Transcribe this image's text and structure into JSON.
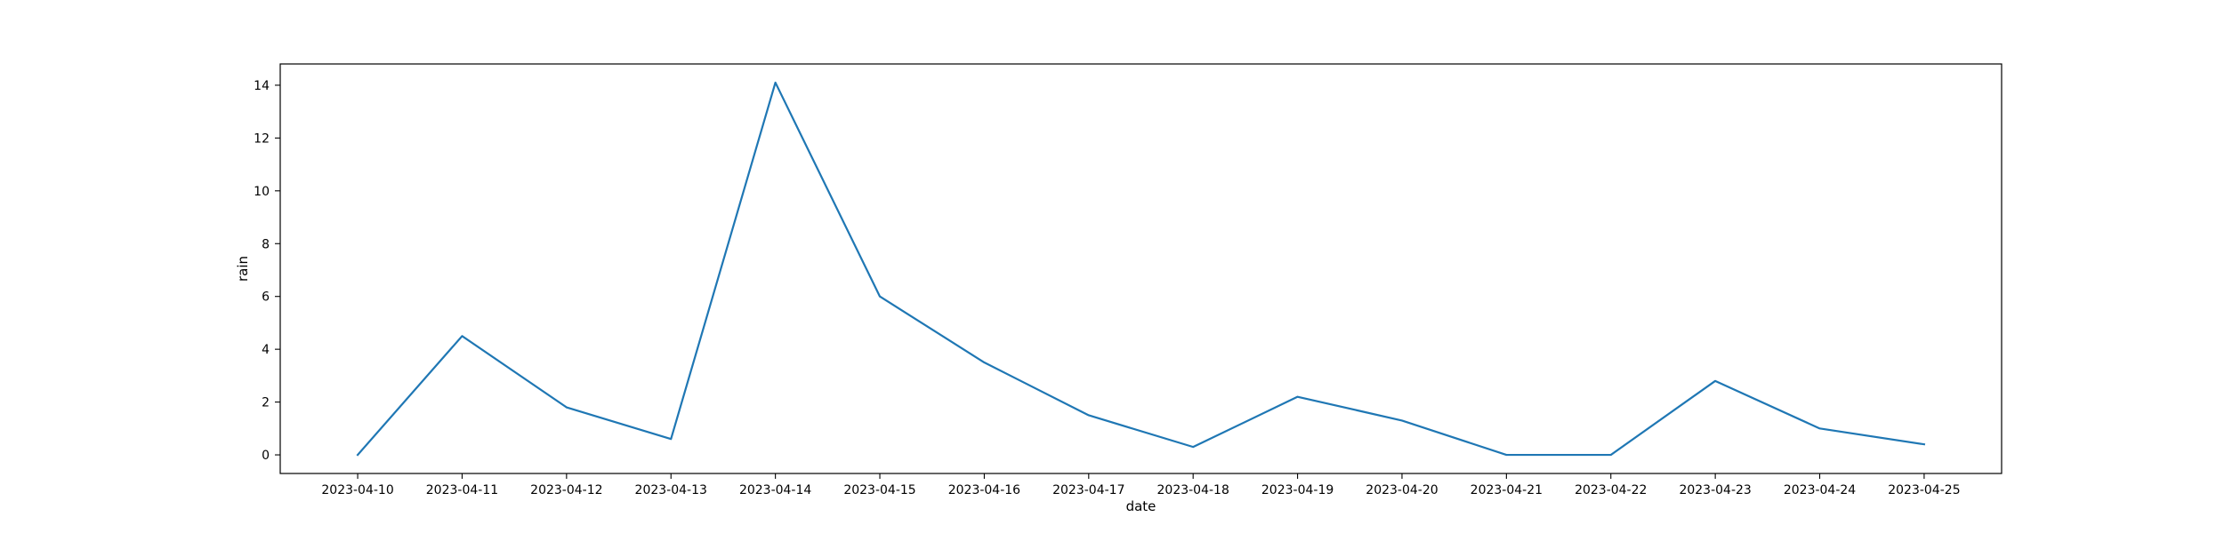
{
  "chart_data": {
    "type": "line",
    "title": "",
    "xlabel": "date",
    "ylabel": "rain",
    "x": [
      "2023-04-10",
      "2023-04-11",
      "2023-04-12",
      "2023-04-13",
      "2023-04-14",
      "2023-04-15",
      "2023-04-16",
      "2023-04-17",
      "2023-04-18",
      "2023-04-19",
      "2023-04-20",
      "2023-04-21",
      "2023-04-22",
      "2023-04-23",
      "2023-04-24",
      "2023-04-25"
    ],
    "series": [
      {
        "values": [
          0.0,
          4.5,
          1.8,
          0.6,
          14.1,
          6.0,
          3.5,
          1.5,
          0.3,
          2.2,
          1.3,
          0.0,
          0.0,
          2.8,
          1.0,
          0.4
        ],
        "color": "#1f77b4"
      }
    ],
    "yticks": [
      0,
      2,
      4,
      6,
      8,
      10,
      12,
      14
    ],
    "ylim": [
      -0.705,
      14.805
    ],
    "grid": false,
    "legend": "none"
  }
}
